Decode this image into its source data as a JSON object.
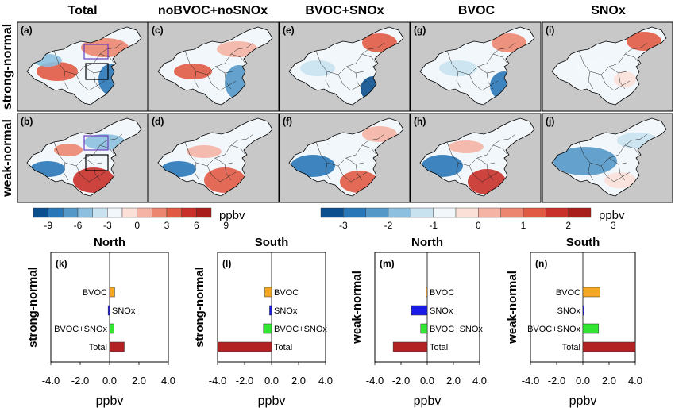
{
  "column_titles": [
    "Total",
    "noBVOC+noSNOx",
    "BVOC+SNOx",
    "BVOC",
    "SNOx"
  ],
  "row_labels": [
    "strong-normal",
    "weak-normal"
  ],
  "map_panels": [
    {
      "label": "(a)",
      "row": 0,
      "col": 0
    },
    {
      "label": "(c)",
      "row": 0,
      "col": 1
    },
    {
      "label": "(e)",
      "row": 0,
      "col": 2
    },
    {
      "label": "(g)",
      "row": 0,
      "col": 3
    },
    {
      "label": "(i)",
      "row": 0,
      "col": 4
    },
    {
      "label": "(b)",
      "row": 1,
      "col": 0
    },
    {
      "label": "(d)",
      "row": 1,
      "col": 1
    },
    {
      "label": "(f)",
      "row": 1,
      "col": 2
    },
    {
      "label": "(h)",
      "row": 1,
      "col": 3
    },
    {
      "label": "(j)",
      "row": 1,
      "col": 4
    }
  ],
  "colorbars": [
    {
      "ticks": [
        "-9",
        "-6",
        "-3",
        "0",
        "3",
        "6",
        "9"
      ],
      "unit": "ppbv",
      "colors": [
        "#0b4f8f",
        "#2a77b8",
        "#5498c8",
        "#8cc0de",
        "#c8e2ef",
        "#f2f7fb",
        "#fbe0d8",
        "#f4b3a4",
        "#ec8670",
        "#e05a44",
        "#c9302a",
        "#a81e1c"
      ]
    },
    {
      "ticks": [
        "-3",
        "-2",
        "-1",
        "0",
        "1",
        "2",
        "3"
      ],
      "unit": "ppbv",
      "colors": [
        "#0b4f8f",
        "#2a77b8",
        "#5498c8",
        "#8cc0de",
        "#c8e2ef",
        "#f2f7fb",
        "#fbe0d8",
        "#f4b3a4",
        "#ec8670",
        "#e05a44",
        "#c9302a",
        "#a81e1c"
      ]
    }
  ],
  "chart_data": [
    {
      "type": "bar",
      "orientation": "horizontal",
      "title": "North",
      "panel": "(k)",
      "ylabel": "strong-normal",
      "xlabel": "ppbv",
      "xlim": [
        -4,
        4
      ],
      "xticks": [
        "-4.0",
        "-2.0",
        "0.0",
        "2.0",
        "4.0"
      ],
      "bars": [
        {
          "name": "BVOC",
          "value": 0.35,
          "color": "#f5a623"
        },
        {
          "name": "SNOx",
          "value": -0.1,
          "color": "#1a1ae6"
        },
        {
          "name": "BVOC+SNOx",
          "value": 0.3,
          "color": "#33e633"
        },
        {
          "name": "Total",
          "value": 1.0,
          "color": "#b22222"
        }
      ]
    },
    {
      "type": "bar",
      "orientation": "horizontal",
      "title": "South",
      "panel": "(l)",
      "ylabel": "strong-normal",
      "xlabel": "ppbv",
      "xlim": [
        -4,
        4
      ],
      "xticks": [
        "-4.0",
        "-2.0",
        "0.0",
        "2.0",
        "4.0"
      ],
      "bars": [
        {
          "name": "BVOC",
          "value": -0.5,
          "color": "#f5a623"
        },
        {
          "name": "SNOx",
          "value": -0.15,
          "color": "#1a1ae6"
        },
        {
          "name": "BVOC+SNOx",
          "value": -0.6,
          "color": "#33e633"
        },
        {
          "name": "Total",
          "value": -4.2,
          "color": "#b22222"
        }
      ]
    },
    {
      "type": "bar",
      "orientation": "horizontal",
      "title": "North",
      "panel": "(m)",
      "ylabel": "weak-normal",
      "xlabel": "ppbv",
      "xlim": [
        -4,
        4
      ],
      "xticks": [
        "-4.0",
        "-2.0",
        "0.0",
        "2.0",
        "4.0"
      ],
      "bars": [
        {
          "name": "BVOC",
          "value": -0.1,
          "color": "#f5a623"
        },
        {
          "name": "SNOx",
          "value": -1.2,
          "color": "#1a1ae6"
        },
        {
          "name": "BVOC+SNOx",
          "value": -0.5,
          "color": "#33e633"
        },
        {
          "name": "Total",
          "value": -2.6,
          "color": "#b22222"
        }
      ]
    },
    {
      "type": "bar",
      "orientation": "horizontal",
      "title": "South",
      "panel": "(n)",
      "ylabel": "weak-normal",
      "xlabel": "ppbv",
      "xlim": [
        -4,
        4
      ],
      "xticks": [
        "-4.0",
        "-2.0",
        "0.0",
        "2.0",
        "4.0"
      ],
      "bars": [
        {
          "name": "BVOC",
          "value": 1.3,
          "color": "#f5a623"
        },
        {
          "name": "SNOx",
          "value": 0.1,
          "color": "#1a1ae6"
        },
        {
          "name": "BVOC+SNOx",
          "value": 1.2,
          "color": "#33e633"
        },
        {
          "name": "Total",
          "value": 4.0,
          "color": "#b22222"
        }
      ]
    }
  ]
}
